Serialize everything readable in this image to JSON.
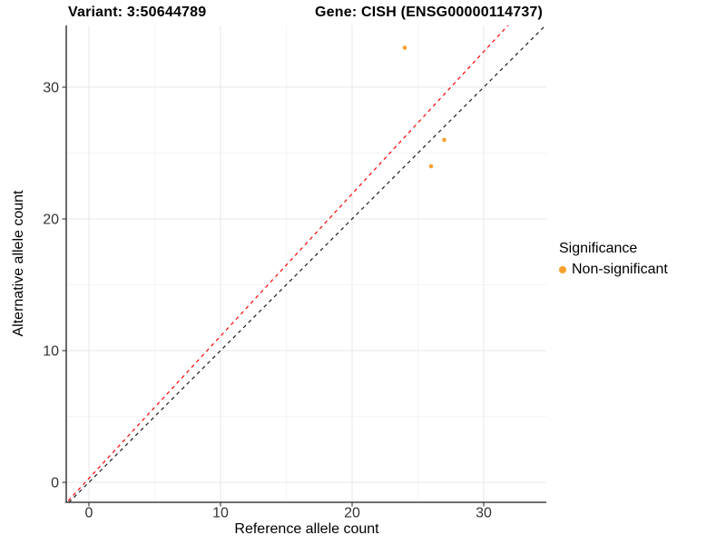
{
  "header": {
    "variant_title": "Variant: 3:50644789",
    "gene_title": "Gene: CISH (ENSG00000114737)"
  },
  "legend": {
    "title": "Significance",
    "items": [
      {
        "label": "Non-significant",
        "color": "#F9A02C"
      }
    ]
  },
  "chart_data": {
    "type": "scatter",
    "title": "Variant: 3:50644789 | Gene: CISH (ENSG00000114737)",
    "xlabel": "Reference allele count",
    "ylabel": "Alternative allele count",
    "xlim": [
      -1.7,
      34.8
    ],
    "ylim": [
      -1.5,
      34.7
    ],
    "x_major_ticks": [
      0,
      10,
      20,
      30
    ],
    "y_major_ticks": [
      0,
      10,
      20,
      30
    ],
    "x_minor_gridlines": [
      5,
      15,
      25
    ],
    "y_minor_gridlines": [
      5,
      15,
      25
    ],
    "grid": "major and minor, light gray on white panel",
    "legend_position": "right",
    "series": [
      {
        "name": "Non-significant",
        "color": "#F9A02C",
        "points": [
          [
            24,
            33
          ],
          [
            27,
            26
          ],
          [
            26,
            24
          ]
        ]
      }
    ],
    "reference_lines": [
      {
        "name": "identity",
        "style": "dashed",
        "color": "#1A1A1A",
        "slope": 1.0,
        "intercept": 0.0
      },
      {
        "name": "fit",
        "style": "dashed",
        "color": "#FF0000",
        "slope": 1.08,
        "intercept": 0.3
      }
    ],
    "colors": {
      "axis_line": "#1B1B1B",
      "major_grid": "#E7E7E7",
      "minor_grid": "#F2F2F2",
      "tick_label": "#333333"
    }
  }
}
